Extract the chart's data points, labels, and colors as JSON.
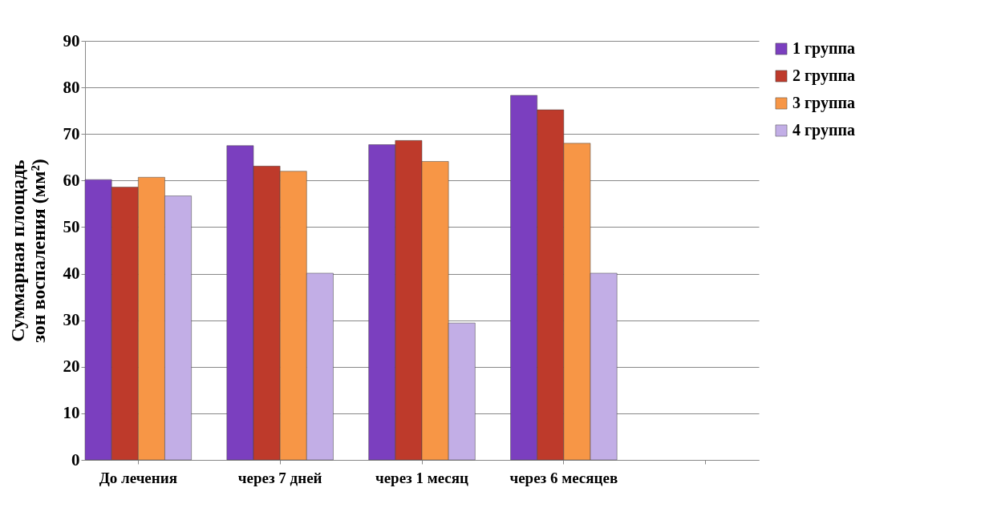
{
  "chart_data": {
    "type": "bar",
    "ylabel": "Суммарная площадь зон воспаления (мм²)",
    "categories": [
      "До лечения",
      "через 7 дней",
      "через 1 месяц",
      "через 6 месяцев",
      null
    ],
    "series": [
      {
        "name": "1 группа",
        "color": "#7b3fbf",
        "values": [
          60.2,
          67.5,
          67.7,
          78.3,
          null
        ]
      },
      {
        "name": "2 группа",
        "color": "#be3a2b",
        "values": [
          58.6,
          63.1,
          68.6,
          75.2,
          null
        ]
      },
      {
        "name": "3 группа",
        "color": "#f79646",
        "values": [
          60.7,
          62.0,
          64.1,
          68.0,
          null
        ]
      },
      {
        "name": "4 группа",
        "color": "#c2aee6",
        "values": [
          56.7,
          40.1,
          29.4,
          40.1,
          null
        ]
      }
    ],
    "ylim": [
      0,
      90
    ],
    "yticks": [
      0,
      10,
      20,
      30,
      40,
      50,
      60,
      70,
      80,
      90
    ],
    "grid": "y",
    "legend": "right"
  }
}
